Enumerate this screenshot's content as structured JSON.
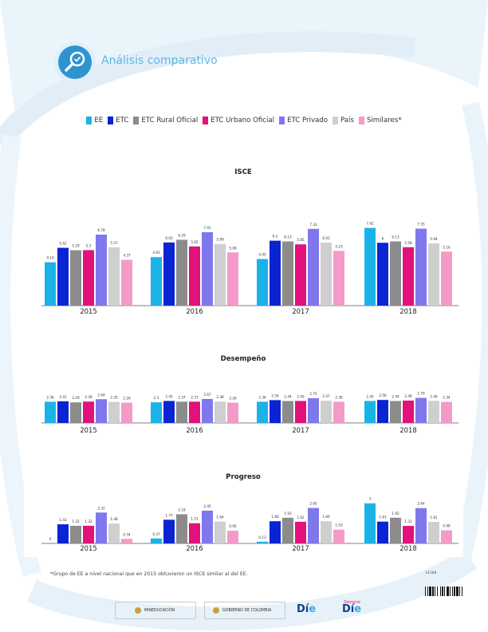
{
  "header": {
    "title": "Análisis comparativo",
    "icon": "magnifier-check-icon"
  },
  "legend": [
    {
      "label": "EE",
      "color": "#1ab3e8"
    },
    {
      "label": "ETC",
      "color": "#0a24d4"
    },
    {
      "label": "ETC Rural Oficial",
      "color": "#8c8c8c"
    },
    {
      "label": "ETC Urbano Oficial",
      "color": "#e3117c"
    },
    {
      "label": "ETC Privado",
      "color": "#7f78ec"
    },
    {
      "label": "País",
      "color": "#cfcfcf"
    },
    {
      "label": "Similares*",
      "color": "#f39ac9"
    }
  ],
  "chart_data": [
    {
      "type": "bar",
      "title": "ISCE",
      "categories": [
        "2015",
        "2016",
        "2017",
        "2018"
      ],
      "ylim": [
        0,
        8
      ],
      "series": [
        {
          "name": "EE",
          "values": [
            4.14,
            4.63,
            4.45,
            7.42
          ]
        },
        {
          "name": "ETC",
          "values": [
            5.52,
            6.03,
            6.2,
            6
          ]
        },
        {
          "name": "ETC Rural Oficial",
          "values": [
            5.29,
            6.29,
            6.13,
            6.13
          ]
        },
        {
          "name": "ETC Urbano Oficial",
          "values": [
            5.3,
            5.65,
            5.85,
            5.58
          ]
        },
        {
          "name": "ETC Privado",
          "values": [
            6.78,
            7.01,
            7.33,
            7.35
          ]
        },
        {
          "name": "País",
          "values": [
            5.57,
            5.89,
            6.01,
            5.94
          ]
        },
        {
          "name": "Similares*",
          "values": [
            4.37,
            5.08,
            5.23,
            5.16
          ]
        }
      ]
    },
    {
      "type": "bar",
      "title": "Desempeño",
      "categories": [
        "2015",
        "2016",
        "2017",
        "2018"
      ],
      "ylim": [
        0,
        4
      ],
      "series": [
        {
          "name": "EE",
          "values": [
            2.36,
            2.3,
            2.36,
            2.45
          ]
        },
        {
          "name": "ETC",
          "values": [
            2.41,
            2.45,
            2.54,
            2.56
          ]
        },
        {
          "name": "ETC Rural Oficial",
          "values": [
            2.29,
            2.37,
            2.44,
            2.44
          ]
        },
        {
          "name": "ETC Urbano Oficial",
          "values": [
            2.38,
            2.37,
            2.45,
            2.49
          ]
        },
        {
          "name": "ETC Privado",
          "values": [
            2.64,
            2.67,
            2.75,
            2.79
          ]
        },
        {
          "name": "País",
          "values": [
            2.35,
            2.38,
            2.47,
            2.46
          ]
        },
        {
          "name": "Similares*",
          "values": [
            2.26,
            2.26,
            2.36,
            2.34
          ]
        }
      ]
    },
    {
      "type": "bar",
      "title": "Progreso",
      "categories": [
        "2015",
        "2016",
        "2017",
        "2018"
      ],
      "ylim": [
        0,
        3.4
      ],
      "series": [
        {
          "name": "EE",
          "values": [
            0,
            0.37,
            0.13,
            3
          ]
        },
        {
          "name": "ETC",
          "values": [
            1.43,
            1.77,
            1.66,
            1.63
          ]
        },
        {
          "name": "ETC Rural Oficial",
          "values": [
            1.32,
            2.18,
            1.92,
            1.92
          ]
        },
        {
          "name": "ETC Urbano Oficial",
          "values": [
            1.32,
            1.51,
            1.62,
            1.31
          ]
        },
        {
          "name": "ETC Privado",
          "values": [
            2.31,
            2.45,
            2.65,
            2.64
          ]
        },
        {
          "name": "País",
          "values": [
            1.48,
            1.64,
            1.66,
            1.61
          ]
        },
        {
          "name": "Similares*",
          "values": [
            0.34,
            0.95,
            1.03,
            0.98
          ]
        }
      ]
    }
  ],
  "footnote": "*Grupo de EE a nivel nacional que en 2015 obtuvieron un ISCE similar al del EE.",
  "code": "14188",
  "logos": {
    "mineducacion": "MINEDUCACIÓN",
    "gobierno": "GOBIERNO DE COLOMBIA",
    "dia": "Dí",
    "dia_e": "e",
    "siempre": "Siempre"
  }
}
